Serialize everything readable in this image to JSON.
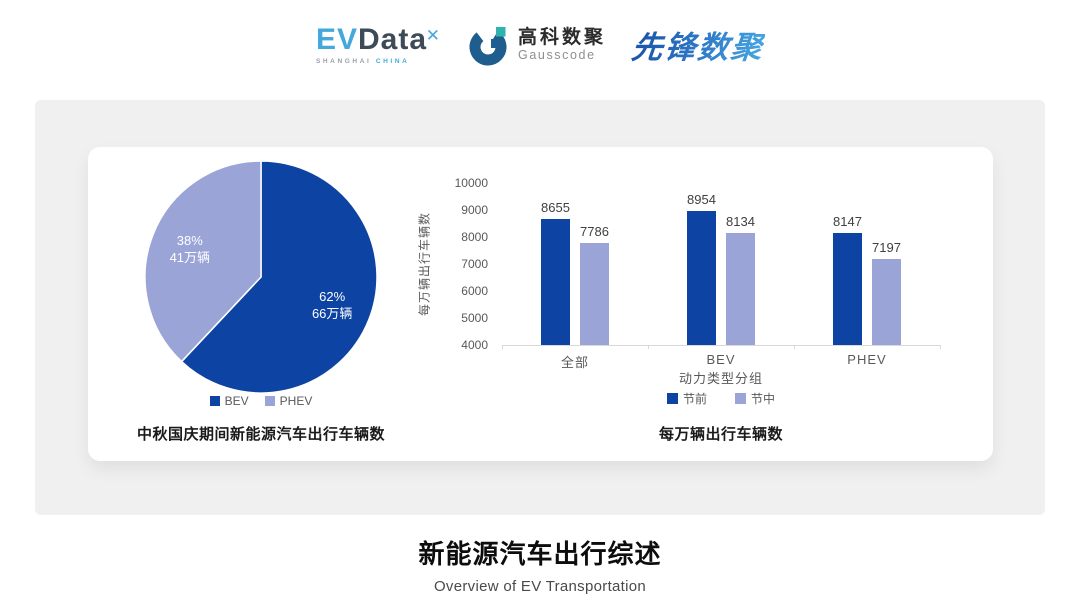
{
  "header": {
    "evdata": {
      "ev": "EV",
      "data": "Data",
      "sub1": "SHANGHAI",
      "sub2": "CHINA"
    },
    "gausscode": {
      "cn": "高科数聚",
      "en": "Gausscode"
    },
    "xianfeng": {
      "text": "先锋数聚"
    }
  },
  "colors": {
    "dark_blue": "#0d43a3",
    "light_purple": "#9aa4d6",
    "panel_bg": "#f0f0f1",
    "axis_text": "#595959",
    "evdata_blue": "#45a8dc",
    "evdata_dark": "#3d4a57",
    "gauss_blue": "#1d5e8e",
    "gauss_teal": "#2fb3ae"
  },
  "chart_data": [
    {
      "type": "pie",
      "title": "中秋国庆期间新能源汽车出行车辆数",
      "start_angle_deg": 0,
      "direction": "clockwise",
      "slices": [
        {
          "label": "BEV",
          "percent": 62,
          "value_label": "62%",
          "amount_label": "66万辆",
          "color": "#0d43a3"
        },
        {
          "label": "PHEV",
          "percent": 38,
          "value_label": "38%",
          "amount_label": "41万辆",
          "color": "#9aa4d6"
        }
      ],
      "legend_position": "bottom"
    },
    {
      "type": "bar",
      "title": "每万辆出行车辆数",
      "categories": [
        "全部",
        "BEV",
        "PHEV"
      ],
      "series": [
        {
          "name": "节前",
          "values": [
            8655,
            8954,
            8147
          ],
          "color": "#0d43a3"
        },
        {
          "name": "节中",
          "values": [
            7786,
            8134,
            7197
          ],
          "color": "#9aa4d6"
        }
      ],
      "xlabel": "动力类型分组",
      "ylabel": "每万辆出行车辆数",
      "ylim": [
        4000,
        10000
      ],
      "ytick_step": 1000,
      "grid": false,
      "legend_position": "bottom"
    }
  ],
  "footer": {
    "title": "新能源汽车出行综述",
    "subtitle": "Overview of EV Transportation"
  }
}
